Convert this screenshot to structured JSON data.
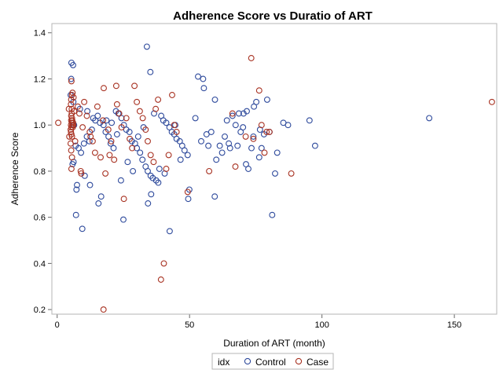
{
  "chart_data": {
    "type": "scatter",
    "title": "Adherence Score vs Duratio of ART",
    "xlabel": "Duration of ART (month)",
    "ylabel": "Adherence Score",
    "xlim": [
      -2,
      166
    ],
    "ylim": [
      0.18,
      1.44
    ],
    "x_ticks": [
      "0",
      "50",
      "100",
      "150"
    ],
    "y_ticks": [
      "0.2",
      "0.4",
      "0.6",
      "0.8",
      "1.0",
      "1.2",
      "1.4"
    ],
    "grid": false,
    "legend": {
      "placement": "bottom",
      "title": "idx",
      "entries": [
        "Control",
        "Case"
      ]
    },
    "series": [
      {
        "name": "Control",
        "color": "#2e4a9c",
        "points": [
          [
            5.4,
            1.27
          ],
          [
            6.0,
            1.26
          ],
          [
            5.3,
            1.2
          ],
          [
            5.1,
            1.13
          ],
          [
            6.1,
            1.1
          ],
          [
            7.0,
            0.91
          ],
          [
            6.2,
            0.84
          ],
          [
            5.8,
            0.83
          ],
          [
            7.5,
            0.74
          ],
          [
            7.3,
            0.72
          ],
          [
            7.1,
            0.61
          ],
          [
            9.5,
            0.55
          ],
          [
            8.1,
            0.9
          ],
          [
            9.0,
            0.88
          ],
          [
            10.1,
            0.92
          ],
          [
            11.2,
            0.95
          ],
          [
            12.2,
            0.93
          ],
          [
            13.1,
            0.98
          ],
          [
            14.4,
            1.02
          ],
          [
            15.3,
            1.04
          ],
          [
            16.2,
            1.01
          ],
          [
            17.5,
            1.0
          ],
          [
            18.3,
            0.97
          ],
          [
            19.4,
            0.95
          ],
          [
            20.2,
            0.92
          ],
          [
            21.3,
            0.9
          ],
          [
            22.2,
            1.06
          ],
          [
            23.1,
            1.05
          ],
          [
            24.3,
            1.03
          ],
          [
            25.2,
            1.0
          ],
          [
            26.1,
            0.98
          ],
          [
            27.3,
            0.97
          ],
          [
            28.2,
            0.93
          ],
          [
            29.4,
            0.92
          ],
          [
            30.1,
            0.9
          ],
          [
            31.3,
            0.88
          ],
          [
            32.2,
            0.85
          ],
          [
            33.4,
            0.82
          ],
          [
            34.2,
            0.8
          ],
          [
            35.3,
            0.78
          ],
          [
            36.1,
            0.77
          ],
          [
            37.4,
            0.76
          ],
          [
            38.2,
            0.75
          ],
          [
            39.3,
            1.04
          ],
          [
            40.1,
            1.02
          ],
          [
            41.2,
            1.01
          ],
          [
            42.4,
            0.99
          ],
          [
            43.3,
            0.97
          ],
          [
            44.2,
            0.96
          ],
          [
            45.1,
            0.94
          ],
          [
            46.3,
            0.93
          ],
          [
            47.2,
            0.91
          ],
          [
            48.1,
            0.89
          ],
          [
            49.3,
            0.87
          ],
          [
            10.4,
            0.78
          ],
          [
            12.4,
            0.74
          ],
          [
            15.6,
            0.66
          ],
          [
            16.6,
            0.69
          ],
          [
            24.1,
            0.76
          ],
          [
            25.0,
            0.59
          ],
          [
            33.9,
            1.34
          ],
          [
            35.2,
            1.23
          ],
          [
            34.3,
            0.66
          ],
          [
            35.5,
            0.7
          ],
          [
            42.5,
            0.54
          ],
          [
            49.5,
            0.68
          ],
          [
            49.9,
            0.72
          ],
          [
            55.1,
            1.2
          ],
          [
            55.4,
            1.16
          ],
          [
            53.2,
            1.21
          ],
          [
            56.4,
            0.96
          ],
          [
            58.2,
            0.97
          ],
          [
            59.6,
            1.11
          ],
          [
            60.1,
            0.85
          ],
          [
            61.4,
            0.91
          ],
          [
            59.5,
            0.69
          ],
          [
            63.3,
            0.95
          ],
          [
            64.1,
            1.02
          ],
          [
            65.3,
            0.9
          ],
          [
            66.2,
            1.04
          ],
          [
            67.4,
            1.0
          ],
          [
            68.1,
            0.91
          ],
          [
            69.3,
            0.97
          ],
          [
            70.2,
            0.99
          ],
          [
            70.4,
            1.05
          ],
          [
            71.3,
            0.83
          ],
          [
            72.2,
            0.81
          ],
          [
            73.4,
            0.9
          ],
          [
            74.1,
            0.95
          ],
          [
            74.3,
            1.08
          ],
          [
            75.2,
            1.1
          ],
          [
            76.3,
            0.86
          ],
          [
            77.2,
            0.9
          ],
          [
            78.1,
            0.96
          ],
          [
            79.3,
            1.11
          ],
          [
            80.2,
            0.97
          ],
          [
            81.2,
            0.61
          ],
          [
            82.3,
            0.79
          ],
          [
            83.1,
            0.88
          ],
          [
            85.4,
            1.01
          ],
          [
            87.2,
            1.0
          ],
          [
            95.3,
            1.02
          ],
          [
            97.4,
            0.91
          ],
          [
            140.5,
            1.03
          ],
          [
            6.4,
            1.0
          ],
          [
            8.6,
            1.07
          ],
          [
            11.4,
            1.06
          ],
          [
            13.6,
            1.03
          ],
          [
            18.6,
            1.02
          ],
          [
            20.6,
            1.01
          ],
          [
            22.6,
            0.96
          ],
          [
            26.6,
            0.84
          ],
          [
            28.6,
            0.8
          ],
          [
            30.6,
            0.95
          ],
          [
            32.6,
            0.99
          ],
          [
            36.6,
            1.05
          ],
          [
            38.6,
            0.81
          ],
          [
            40.6,
            0.79
          ],
          [
            44.6,
            1.0
          ],
          [
            46.6,
            0.85
          ],
          [
            52.2,
            1.03
          ],
          [
            54.4,
            0.93
          ],
          [
            57.1,
            0.91
          ],
          [
            62.3,
            0.88
          ],
          [
            64.8,
            0.92
          ],
          [
            68.6,
            1.05
          ],
          [
            71.6,
            1.06
          ],
          [
            76.6,
            0.98
          ]
        ]
      },
      {
        "name": "Case",
        "color": "#a83222",
        "points": [
          [
            5.2,
            1.0
          ],
          [
            5.3,
            1.02
          ],
          [
            5.4,
            0.99
          ],
          [
            5.5,
            1.01
          ],
          [
            5.1,
            0.98
          ],
          [
            5.6,
            1.03
          ],
          [
            5.8,
            1.0
          ],
          [
            5.2,
            0.97
          ],
          [
            5.3,
            1.04
          ],
          [
            5.4,
            0.96
          ],
          [
            5.5,
            1.05
          ],
          [
            5.6,
            0.95
          ],
          [
            5.7,
            1.02
          ],
          [
            5.9,
            0.99
          ],
          [
            6.0,
            1.01
          ],
          [
            6.1,
            1.0
          ],
          [
            5.4,
            1.19
          ],
          [
            5.6,
            1.13
          ],
          [
            5.3,
            1.11
          ],
          [
            5.2,
            1.09
          ],
          [
            5.5,
            1.07
          ],
          [
            5.8,
            1.14
          ],
          [
            6.2,
            1.12
          ],
          [
            6.4,
            1.06
          ],
          [
            5.1,
            0.92
          ],
          [
            5.3,
            0.89
          ],
          [
            5.4,
            0.81
          ],
          [
            5.6,
            0.86
          ],
          [
            7.8,
            1.08
          ],
          [
            8.4,
            1.05
          ],
          [
            8.9,
            0.8
          ],
          [
            9.1,
            0.79
          ],
          [
            10.2,
            1.1
          ],
          [
            11.2,
            1.04
          ],
          [
            12.3,
            0.97
          ],
          [
            13.4,
            0.93
          ],
          [
            14.3,
            0.88
          ],
          [
            15.2,
            1.08
          ],
          [
            16.4,
            0.86
          ],
          [
            17.3,
            1.02
          ],
          [
            17.6,
            1.16
          ],
          [
            18.2,
            0.79
          ],
          [
            19.3,
            0.98
          ],
          [
            20.4,
            0.93
          ],
          [
            21.5,
            0.85
          ],
          [
            22.6,
            1.09
          ],
          [
            22.3,
            1.17
          ],
          [
            23.4,
            1.05
          ],
          [
            24.3,
            0.99
          ],
          [
            25.2,
            0.68
          ],
          [
            26.1,
            1.03
          ],
          [
            27.4,
            0.94
          ],
          [
            28.3,
            0.9
          ],
          [
            29.2,
            1.17
          ],
          [
            30.1,
            1.1
          ],
          [
            31.2,
            1.06
          ],
          [
            32.3,
            1.03
          ],
          [
            33.4,
            0.98
          ],
          [
            34.2,
            0.93
          ],
          [
            35.3,
            0.87
          ],
          [
            36.4,
            0.84
          ],
          [
            37.2,
            1.07
          ],
          [
            38.1,
            1.11
          ],
          [
            39.2,
            0.33
          ],
          [
            40.3,
            0.4
          ],
          [
            41.2,
            0.81
          ],
          [
            42.1,
            0.87
          ],
          [
            43.4,
            1.13
          ],
          [
            44.2,
            1.0
          ],
          [
            45.1,
            0.97
          ],
          [
            49.3,
            0.71
          ],
          [
            57.4,
            0.8
          ],
          [
            66.2,
            1.05
          ],
          [
            67.3,
            0.82
          ],
          [
            71.2,
            0.95
          ],
          [
            73.3,
            1.29
          ],
          [
            74.1,
            0.94
          ],
          [
            76.3,
            1.15
          ],
          [
            77.2,
            1.0
          ],
          [
            78.3,
            0.88
          ],
          [
            79.1,
            0.97
          ],
          [
            80.2,
            0.97
          ],
          [
            88.4,
            0.79
          ],
          [
            164.2,
            1.1
          ],
          [
            17.5,
            0.2
          ],
          [
            0.4,
            1.01
          ],
          [
            4.4,
            1.07
          ],
          [
            4.6,
            0.95
          ],
          [
            6.8,
            0.93
          ],
          [
            9.6,
            0.99
          ],
          [
            12.6,
            0.95
          ],
          [
            19.8,
            0.87
          ]
        ]
      }
    ]
  }
}
